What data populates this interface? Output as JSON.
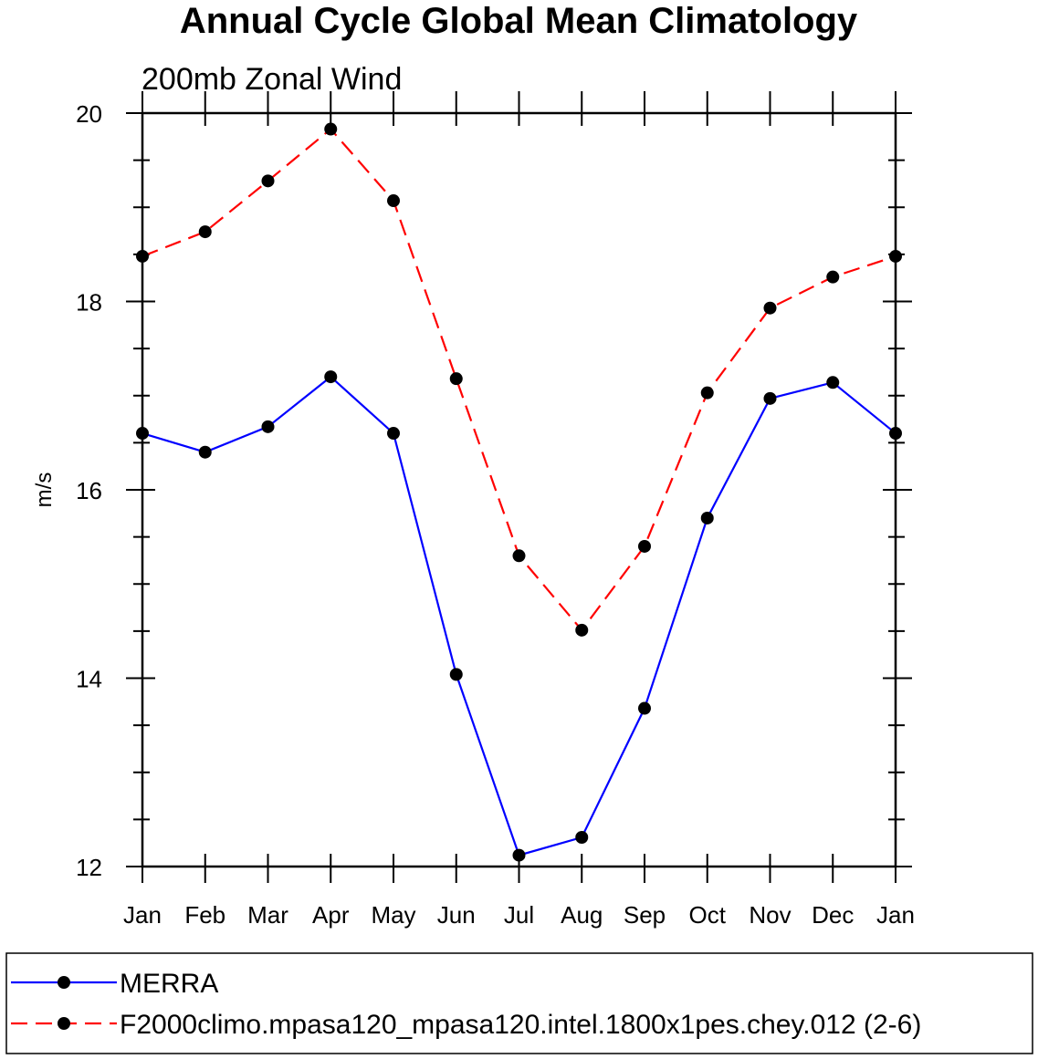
{
  "chart_data": {
    "type": "line",
    "title": "Annual Cycle Global Mean Climatology",
    "subtitle": "200mb Zonal Wind",
    "ylabel": "m/s",
    "xlabel": "",
    "categories": [
      "Jan",
      "Feb",
      "Mar",
      "Apr",
      "May",
      "Jun",
      "Jul",
      "Aug",
      "Sep",
      "Oct",
      "Nov",
      "Dec",
      "Jan"
    ],
    "ylim": [
      12,
      20
    ],
    "yticks": [
      "12",
      "14",
      "16",
      "18",
      "20"
    ],
    "series": [
      {
        "name": "MERRA",
        "color": "#0000ff",
        "dash": "solid",
        "values": [
          16.6,
          16.4,
          16.67,
          17.2,
          16.6,
          14.04,
          12.12,
          12.31,
          13.68,
          15.7,
          16.97,
          17.14,
          16.6
        ]
      },
      {
        "name": "F2000climo.mpasa120_mpasa120.intel.1800x1pes.chey.012 (2-6)",
        "color": "#ff0000",
        "dash": "dashed",
        "values": [
          18.48,
          18.74,
          19.28,
          19.83,
          19.07,
          17.18,
          15.3,
          14.51,
          15.4,
          17.03,
          17.93,
          18.26,
          18.48
        ]
      }
    ],
    "legend_position": "bottom"
  }
}
